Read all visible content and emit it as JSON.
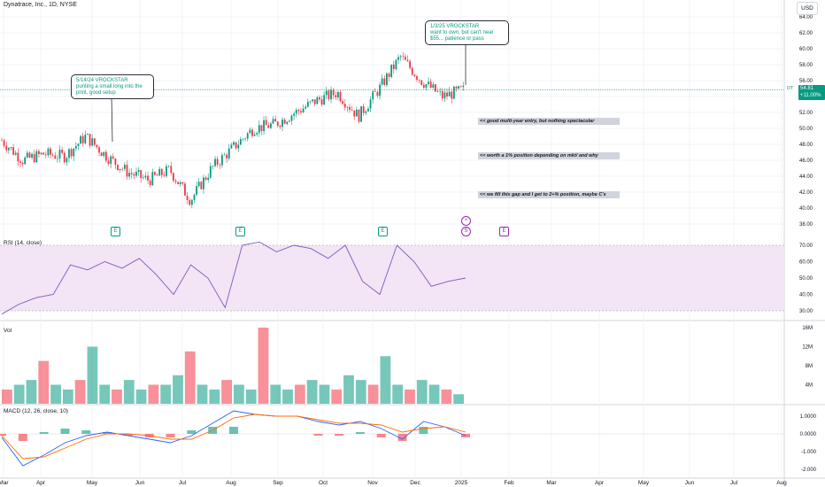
{
  "header": {
    "symbol": "Dynatrace, Inc., 1D, NYSE",
    "currency": "USD"
  },
  "price_tag": {
    "ticker": "DT",
    "price": "54.81",
    "change": "+11.00%"
  },
  "callouts": [
    {
      "text": "5/14/24 VROCKSTAR\npunting a small long into the\nprint, good setup"
    },
    {
      "text": "1/3/25 VROCKSTAR\nwant to own, but can't near\n$55... patience or pass"
    }
  ],
  "notes": [
    "<< good multi-year entry, but nothing spectacular",
    "<< worth a 1% position depending on mkt/ and why",
    "<< we fill this gap and I get to 2+% position, maybe C's"
  ],
  "events": {
    "earnings": "E",
    "dividend_plus": "+",
    "split": "S"
  },
  "panes": {
    "rsi_title": "RSI (14, close)",
    "vol_title": "Vol",
    "macd_title": "MACD (12, 26, close, 10)"
  },
  "colors": {
    "up": "#089981",
    "down": "#f23645",
    "rsi_line": "#7e57c2",
    "rsi_band": "#f3e5f5",
    "macd_line": "#2962ff",
    "signal_line": "#ff6d00",
    "grid": "#f0f3fa"
  },
  "chart_data": {
    "type": "candlestick",
    "title": "Dynatrace, Inc., 1D, NYSE",
    "x_ticks": [
      "Mar",
      "Apr",
      "May",
      "Jun",
      "Jul",
      "Aug",
      "Sep",
      "Oct",
      "Nov",
      "Dec",
      "2025",
      "Feb",
      "Mar",
      "Apr",
      "May",
      "Jun",
      "Jul",
      "Aug"
    ],
    "price_axis": {
      "ticks": [
        "38.00",
        "40.00",
        "42.00",
        "44.00",
        "46.00",
        "48.00",
        "50.00",
        "52.00",
        "54.00",
        "56.00",
        "58.00",
        "60.00",
        "62.00",
        "64.00"
      ],
      "ylim": [
        37,
        65
      ]
    },
    "price_series": [
      {
        "m": "Mar",
        "close": 48.5
      },
      {
        "m": "Apr",
        "close": 46.0
      },
      {
        "m": "Apr",
        "close": 46.8
      },
      {
        "m": "May",
        "close": 46.5
      },
      {
        "m": "May",
        "close": 49.0
      },
      {
        "m": "Jun",
        "close": 46.5
      },
      {
        "m": "Jun",
        "close": 44.5
      },
      {
        "m": "Jul",
        "close": 43.5
      },
      {
        "m": "Jul",
        "close": 44.8
      },
      {
        "m": "Aug",
        "close": 41.0
      },
      {
        "m": "Aug",
        "close": 45.0
      },
      {
        "m": "Aug",
        "close": 47.5
      },
      {
        "m": "Sep",
        "close": 50.0
      },
      {
        "m": "Sep",
        "close": 50.5
      },
      {
        "m": "Oct",
        "close": 52.0
      },
      {
        "m": "Oct",
        "close": 53.5
      },
      {
        "m": "Nov",
        "close": 54.5
      },
      {
        "m": "Nov",
        "close": 51.5
      },
      {
        "m": "Nov",
        "close": 55.0
      },
      {
        "m": "Dec",
        "close": 59.0
      },
      {
        "m": "Dec",
        "close": 56.0
      },
      {
        "m": "Dec",
        "close": 54.0
      },
      {
        "m": "2025",
        "close": 54.81
      }
    ],
    "rsi": {
      "axis_ticks": [
        "30.00",
        "40.00",
        "50.00",
        "60.00",
        "70.00"
      ],
      "band": [
        30,
        70
      ],
      "values": [
        28,
        34,
        38,
        40,
        58,
        55,
        60,
        56,
        62,
        52,
        40,
        58,
        50,
        32,
        70,
        72,
        66,
        70,
        68,
        62,
        70,
        48,
        40,
        70,
        60,
        45,
        48,
        50
      ]
    },
    "volume": {
      "axis_ticks": [
        "4M",
        "8M",
        "12M",
        "16M"
      ],
      "max_value_M": 16,
      "values_M": [
        3,
        4,
        5,
        9,
        4,
        3,
        5,
        12,
        4,
        3,
        5,
        3,
        4,
        4,
        6,
        11,
        4,
        3,
        5,
        4,
        3,
        16,
        4,
        3,
        4,
        5,
        4,
        3,
        6,
        5,
        4,
        10,
        4,
        3,
        5,
        4,
        3,
        2
      ]
    },
    "macd": {
      "axis_ticks": [
        "-2.000",
        "-1.000",
        "0.0000",
        "1.0000"
      ],
      "macd": [
        -0.2,
        -1.8,
        -1.2,
        -0.5,
        -0.1,
        0.1,
        -0.1,
        -0.3,
        -0.5,
        -0.1,
        0.6,
        1.3,
        1.1,
        1.0,
        1.0,
        0.7,
        0.5,
        0.7,
        0.3,
        -0.3,
        0.7,
        0.4,
        -0.1
      ],
      "signal": [
        -0.1,
        -1.4,
        -1.3,
        -0.8,
        -0.3,
        0.0,
        0.0,
        -0.1,
        -0.3,
        -0.3,
        0.2,
        0.9,
        1.1,
        1.0,
        1.0,
        0.8,
        0.6,
        0.6,
        0.5,
        0.1,
        0.3,
        0.4,
        0.1
      ]
    }
  }
}
